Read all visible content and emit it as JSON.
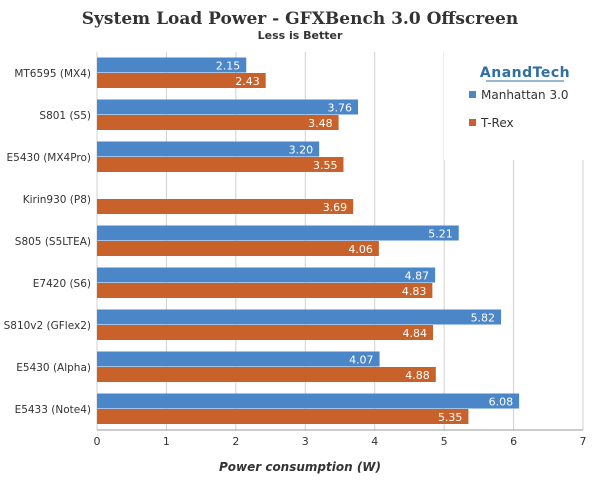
{
  "chart_data": {
    "type": "bar",
    "orientation": "horizontal",
    "title": "System Load Power - GFXBench 3.0 Offscreen",
    "subtitle": "Less is Better",
    "xlabel": "Power consumption (W)",
    "xlim": [
      0,
      7
    ],
    "xticks": [
      "0",
      "1",
      "2",
      "3",
      "4",
      "5",
      "6",
      "7"
    ],
    "grid": true,
    "legend_position": "top-right",
    "logo_text": "AnandTech",
    "categories": [
      "MT6595 (MX4)",
      "S801 (S5)",
      "E5430 (MX4Pro)",
      "Kirin930 (P8)",
      "S805 (S5LTEA)",
      "E7420 (S6)",
      "S810v2 (GFlex2)",
      "E5430 (Alpha)",
      "E5433 (Note4)"
    ],
    "series": [
      {
        "name": "Manhattan 3.0",
        "color": "#4a86c8",
        "values": [
          2.15,
          3.76,
          3.2,
          null,
          5.21,
          4.87,
          5.82,
          4.07,
          6.08
        ],
        "labels": [
          "2.15",
          "3.76",
          "3.20",
          "",
          "5.21",
          "4.87",
          "5.82",
          "4.07",
          "6.08"
        ]
      },
      {
        "name": "T-Rex",
        "color": "#c8622a",
        "values": [
          2.43,
          3.48,
          3.55,
          3.69,
          4.06,
          4.83,
          4.84,
          4.88,
          5.35
        ],
        "labels": [
          "2.43",
          "3.48",
          "3.55",
          "3.69",
          "4.06",
          "4.83",
          "4.84",
          "4.88",
          "5.35"
        ]
      }
    ]
  }
}
